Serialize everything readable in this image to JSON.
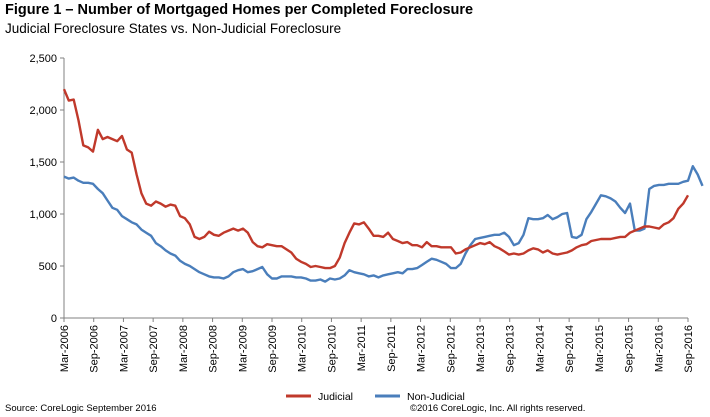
{
  "title": "Figure 1 – Number of Mortgaged Homes per Completed Foreclosure",
  "subtitle": "Judicial Foreclosure States vs. Non-Judicial Foreclosure",
  "source": "Source: CoreLogic  September 2016",
  "copyright": "©2016 CoreLogic, Inc. All rights reserved.",
  "colors": {
    "judicial": "#c0392b",
    "non_judicial": "#4a7ebb",
    "axis": "#808080"
  },
  "chart_data": {
    "type": "line",
    "title": "Figure 1 – Number of Mortgaged Homes per Completed Foreclosure",
    "subtitle": "Judicial Foreclosure States vs. Non-Judicial Foreclosure",
    "xlabel": "",
    "ylabel": "",
    "ylim": [
      0,
      2500
    ],
    "y_ticks": [
      0,
      500,
      1000,
      1500,
      2000,
      2500
    ],
    "y_tick_labels": [
      "0",
      "500",
      "1,000",
      "1,500",
      "2,000",
      "2,500"
    ],
    "x_tick_labels": [
      "Mar-2006",
      "Sep-2006",
      "Mar-2007",
      "Sep-2007",
      "Mar-2008",
      "Sep-2008",
      "Mar-2009",
      "Sep-2009",
      "Mar-2010",
      "Sep-2010",
      "Mar-2011",
      "Sep-2011",
      "Mar-2012",
      "Sep-2012",
      "Mar-2013",
      "Sep-2013",
      "Mar-2014",
      "Sep-2014",
      "Mar-2015",
      "Sep-2015",
      "Mar-2016",
      "Sep-2016"
    ],
    "grid": false,
    "legend_position": "bottom",
    "series": [
      {
        "name": "Judicial",
        "color": "#c0392b",
        "values": [
          2200,
          2090,
          2100,
          1900,
          1660,
          1640,
          1600,
          1810,
          1720,
          1740,
          1720,
          1700,
          1750,
          1620,
          1590,
          1380,
          1200,
          1100,
          1080,
          1120,
          1100,
          1070,
          1090,
          1080,
          980,
          960,
          900,
          780,
          760,
          780,
          830,
          800,
          790,
          820,
          840,
          860,
          840,
          860,
          820,
          730,
          690,
          680,
          710,
          700,
          690,
          690,
          660,
          630,
          570,
          540,
          520,
          490,
          500,
          490,
          480,
          480,
          500,
          580,
          720,
          820,
          910,
          900,
          920,
          860,
          790,
          790,
          780,
          820,
          760,
          740,
          720,
          730,
          700,
          700,
          680,
          730,
          690,
          690,
          680,
          680,
          680,
          620,
          630,
          660,
          680,
          700,
          720,
          710,
          730,
          690,
          670,
          640,
          610,
          620,
          610,
          620,
          650,
          670,
          660,
          630,
          650,
          620,
          610,
          620,
          630,
          650,
          680,
          700,
          710,
          740,
          750,
          760,
          760,
          760,
          770,
          780,
          780,
          820,
          840,
          860,
          880,
          880,
          870,
          860,
          900,
          920,
          960,
          1050,
          1100,
          1180
        ]
      },
      {
        "name": "Non-Judicial",
        "color": "#4a7ebb",
        "values": [
          1360,
          1340,
          1350,
          1320,
          1300,
          1300,
          1290,
          1240,
          1200,
          1130,
          1060,
          1040,
          980,
          950,
          920,
          900,
          850,
          820,
          790,
          720,
          690,
          650,
          620,
          600,
          550,
          520,
          500,
          470,
          440,
          420,
          400,
          390,
          390,
          380,
          400,
          440,
          460,
          470,
          440,
          450,
          470,
          490,
          420,
          380,
          380,
          400,
          400,
          400,
          390,
          390,
          380,
          360,
          360,
          370,
          350,
          380,
          370,
          380,
          410,
          460,
          440,
          430,
          420,
          400,
          410,
          390,
          410,
          420,
          430,
          440,
          430,
          470,
          470,
          480,
          510,
          540,
          570,
          560,
          540,
          520,
          480,
          480,
          520,
          620,
          700,
          760,
          770,
          780,
          790,
          800,
          800,
          820,
          780,
          700,
          720,
          800,
          960,
          950,
          950,
          960,
          990,
          950,
          970,
          1000,
          1010,
          780,
          770,
          800,
          950,
          1020,
          1100,
          1180,
          1170,
          1150,
          1120,
          1060,
          1010,
          1100,
          840,
          840,
          860,
          1240,
          1270,
          1280,
          1280,
          1290,
          1290,
          1290,
          1310,
          1320,
          1460,
          1380,
          1270
        ]
      }
    ]
  }
}
